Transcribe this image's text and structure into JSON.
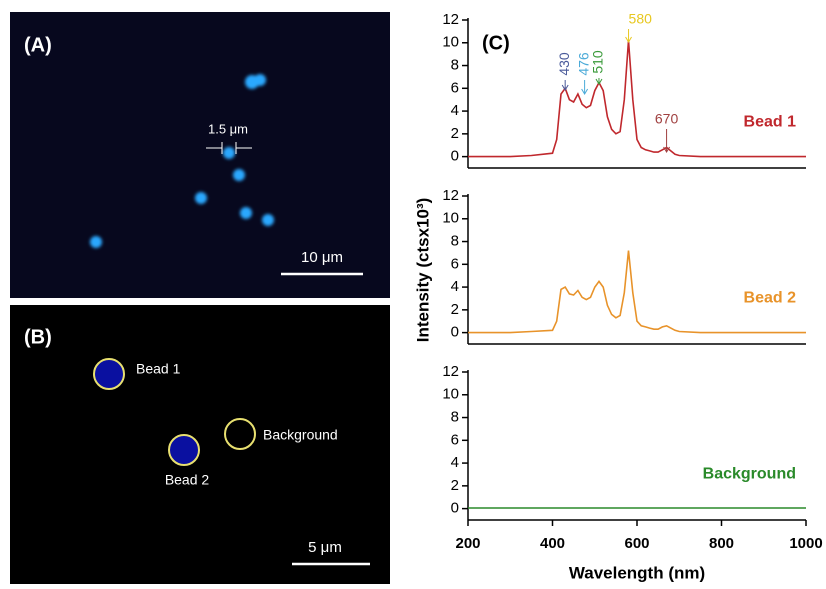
{
  "panels": {
    "A": {
      "label": "(A)",
      "size_label": "1.5 μm",
      "scale_bar": "10 μm"
    },
    "B": {
      "label": "(B)",
      "beads": [
        "Bead 1",
        "Bead 2",
        "Background"
      ],
      "scale_bar": "5 μm"
    }
  },
  "chart_data": [
    {
      "type": "line",
      "panel_label": "(C)",
      "x": [
        200,
        250,
        300,
        350,
        400,
        410,
        420,
        430,
        440,
        450,
        460,
        470,
        480,
        490,
        500,
        510,
        520,
        530,
        540,
        550,
        560,
        570,
        580,
        590,
        600,
        610,
        620,
        630,
        640,
        650,
        660,
        670,
        680,
        690,
        700,
        750,
        800,
        850,
        900,
        950,
        1000
      ],
      "series": [
        {
          "name": "Bead 1",
          "color": "#c0282d",
          "values": [
            0,
            0,
            0,
            0.1,
            0.3,
            1.5,
            5.5,
            6.0,
            5.0,
            4.8,
            5.5,
            4.6,
            4.3,
            4.5,
            5.8,
            6.5,
            5.8,
            3.5,
            2.4,
            2.0,
            2.2,
            5.0,
            10.2,
            5.0,
            1.5,
            0.8,
            0.6,
            0.5,
            0.4,
            0.4,
            0.6,
            0.8,
            0.5,
            0.2,
            0.1,
            0,
            0,
            0,
            0,
            0,
            0
          ]
        }
      ],
      "peak_labels": [
        430,
        476,
        510,
        580,
        670
      ],
      "peak_colors": [
        "#4a5a9a",
        "#4aaad8",
        "#3a9a3a",
        "#e8c820",
        "#a04040"
      ],
      "xlim": [
        200,
        1000
      ],
      "ylim": [
        -1,
        12
      ],
      "yticks": [
        0,
        2,
        4,
        6,
        8,
        10,
        12
      ]
    },
    {
      "type": "line",
      "x": [
        200,
        250,
        300,
        350,
        400,
        410,
        420,
        430,
        440,
        450,
        460,
        470,
        480,
        490,
        500,
        510,
        520,
        530,
        540,
        550,
        560,
        570,
        580,
        590,
        600,
        610,
        620,
        630,
        640,
        650,
        660,
        670,
        680,
        690,
        700,
        750,
        800,
        850,
        900,
        950,
        1000
      ],
      "series": [
        {
          "name": "Bead 2",
          "color": "#e8932a",
          "values": [
            0,
            0,
            0,
            0.1,
            0.2,
            1.0,
            3.8,
            4.0,
            3.4,
            3.3,
            3.7,
            3.1,
            2.9,
            3.1,
            4.0,
            4.5,
            4.0,
            2.4,
            1.6,
            1.3,
            1.5,
            3.5,
            7.2,
            3.5,
            1.0,
            0.6,
            0.5,
            0.4,
            0.3,
            0.3,
            0.5,
            0.6,
            0.4,
            0.2,
            0.1,
            0,
            0,
            0,
            0,
            0,
            0
          ]
        }
      ],
      "y_label": "Intensity (ctsx10³)",
      "xlim": [
        200,
        1000
      ],
      "ylim": [
        -1,
        12
      ],
      "yticks": [
        0,
        2,
        4,
        6,
        8,
        10,
        12
      ]
    },
    {
      "type": "line",
      "x": [
        200,
        250,
        300,
        350,
        400,
        410,
        420,
        430,
        440,
        450,
        460,
        470,
        480,
        490,
        500,
        510,
        520,
        530,
        540,
        550,
        560,
        570,
        580,
        590,
        600,
        610,
        620,
        630,
        640,
        650,
        660,
        670,
        680,
        690,
        700,
        750,
        800,
        850,
        900,
        950,
        1000
      ],
      "series": [
        {
          "name": "Background",
          "color": "#2a8a2a",
          "values": [
            0.05,
            0.05,
            0.05,
            0.05,
            0.05,
            0.05,
            0.05,
            0.05,
            0.05,
            0.05,
            0.05,
            0.05,
            0.05,
            0.05,
            0.05,
            0.05,
            0.05,
            0.05,
            0.05,
            0.05,
            0.05,
            0.05,
            0.05,
            0.05,
            0.05,
            0.05,
            0.05,
            0.05,
            0.05,
            0.05,
            0.05,
            0.05,
            0.05,
            0.05,
            0.05,
            0.05,
            0.05,
            0.05,
            0.05,
            0.05,
            0.05
          ]
        }
      ],
      "x_label": "Wavelength (nm)",
      "xlim": [
        200,
        1000
      ],
      "ylim": [
        -1,
        12
      ],
      "yticks": [
        0,
        2,
        4,
        6,
        8,
        10,
        12
      ],
      "xticks": [
        200,
        400,
        600,
        800,
        1000
      ]
    }
  ]
}
